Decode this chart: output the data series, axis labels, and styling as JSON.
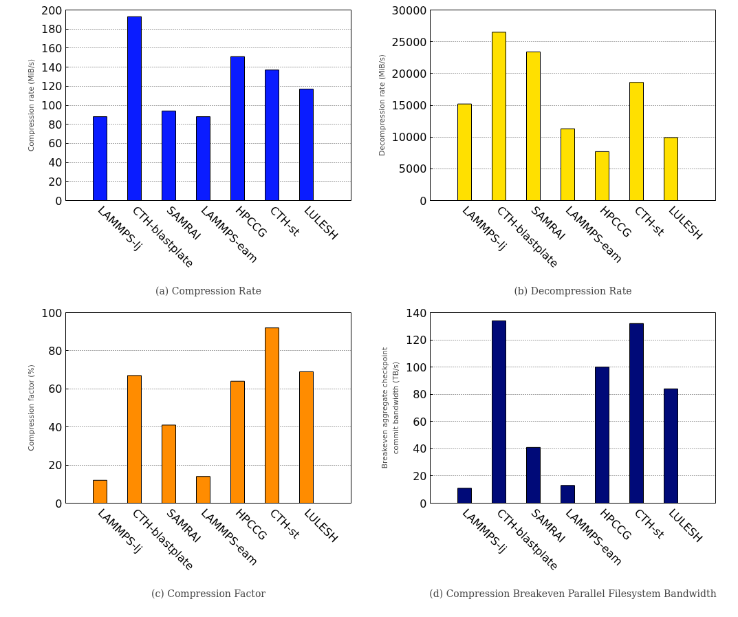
{
  "chart_data": [
    {
      "type": "bar",
      "title": "(a) Compression Rate",
      "ylabel": "Compression rate (MiB/s)",
      "categories": [
        "LAMMPS-lj",
        "CTH-blastplate",
        "SAMRAI",
        "LAMMPS-eam",
        "HPCCG",
        "CTH-st",
        "LULESH"
      ],
      "values": [
        88,
        193,
        94,
        88,
        151,
        137,
        117
      ],
      "color": "#0a1cff",
      "ylim": [
        0,
        200
      ],
      "yticks": [
        0,
        20,
        40,
        60,
        80,
        100,
        120,
        140,
        160,
        180,
        200
      ],
      "grid": "y"
    },
    {
      "type": "bar",
      "title": "(b) Decompression Rate",
      "ylabel": "Decompression rate (MiB/s)",
      "categories": [
        "LAMMPS-lj",
        "CTH-blastplate",
        "SAMRAI",
        "LAMMPS-eam",
        "HPCCG",
        "CTH-st",
        "LULESH"
      ],
      "values": [
        15200,
        26500,
        23400,
        11300,
        7700,
        18600,
        9900
      ],
      "color": "#ffe000",
      "ylim": [
        0,
        30000
      ],
      "yticks": [
        0,
        5000,
        10000,
        15000,
        20000,
        25000,
        30000
      ],
      "grid": "y"
    },
    {
      "type": "bar",
      "title": "(c) Compression Factor",
      "ylabel": "Compression factor (%)",
      "categories": [
        "LAMMPS-lj",
        "CTH-blastplate",
        "SAMRAI",
        "LAMMPS-eam",
        "HPCCG",
        "CTH-st",
        "LULESH"
      ],
      "values": [
        12,
        67,
        41,
        14,
        64,
        92,
        69
      ],
      "color": "#ff8c00",
      "ylim": [
        0,
        100
      ],
      "yticks": [
        0,
        20,
        40,
        60,
        80,
        100
      ],
      "grid": "y"
    },
    {
      "type": "bar",
      "title": "(d) Compression Breakeven Parallel Filesystem Bandwidth",
      "ylabel": "Breakeven aggregate checkpoint\ncommit bandwidth (TB/s)",
      "categories": [
        "LAMMPS-lj",
        "CTH-blastplate",
        "SAMRAI",
        "LAMMPS-eam",
        "HPCCG",
        "CTH-st",
        "LULESH"
      ],
      "values": [
        11,
        134,
        41,
        13,
        100,
        132,
        84
      ],
      "color": "#000a78",
      "ylim": [
        0,
        140
      ],
      "yticks": [
        0,
        20,
        40,
        60,
        80,
        100,
        120,
        140
      ],
      "grid": "y"
    }
  ]
}
